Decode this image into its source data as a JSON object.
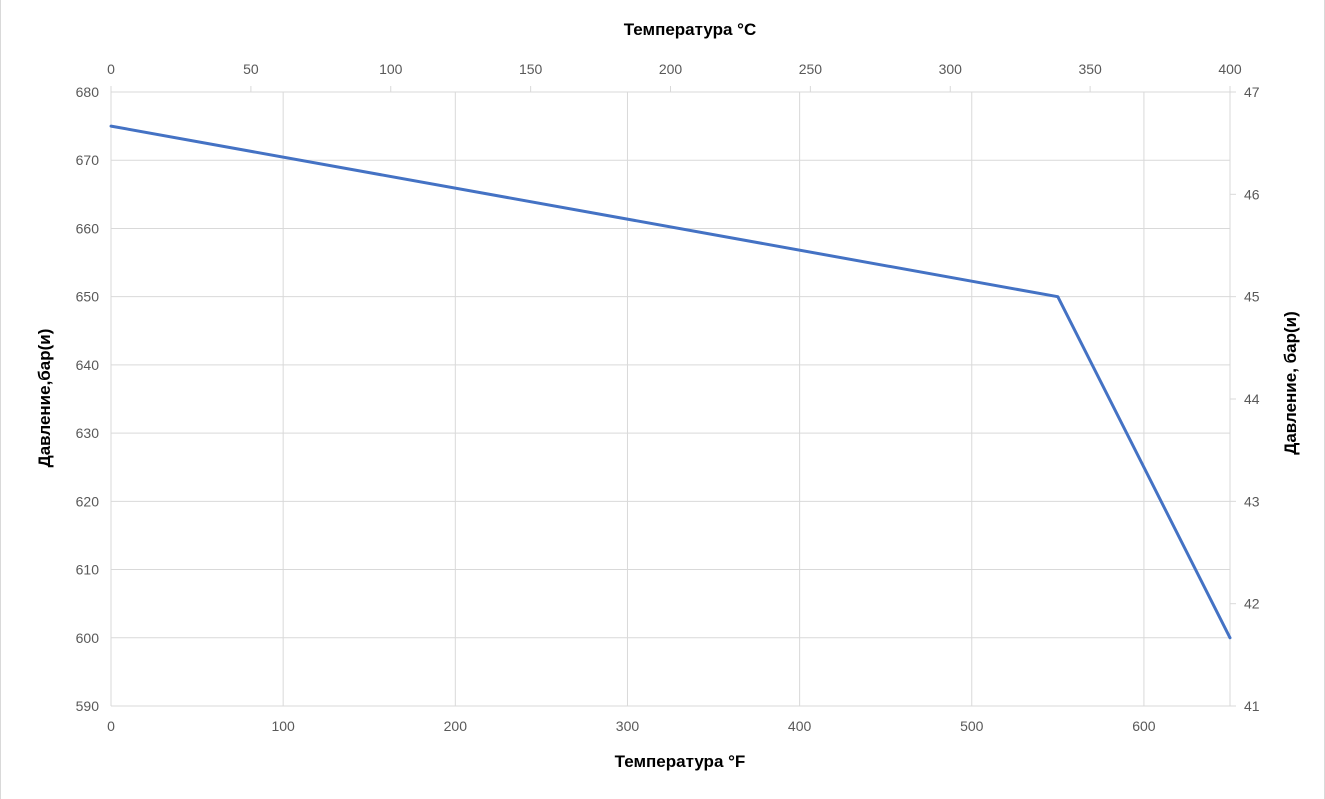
{
  "chart_data": {
    "type": "line",
    "title": "",
    "xlabel": "Температура °F",
    "x2label": "Температура °C",
    "ylabel": "Давление,бар(и)",
    "y2label": "Давление, бар(и)",
    "xlim": [
      0,
      650
    ],
    "x2lim": [
      0,
      400
    ],
    "ylim": [
      590,
      680
    ],
    "y2lim": [
      41,
      47
    ],
    "x_ticks": [
      "0",
      "100",
      "200",
      "300",
      "400",
      "500",
      "600"
    ],
    "x2_ticks": [
      "0",
      "50",
      "100",
      "150",
      "200",
      "250",
      "300",
      "350",
      "400"
    ],
    "y_ticks": [
      "590",
      "600",
      "610",
      "620",
      "630",
      "640",
      "650",
      "660",
      "670",
      "680"
    ],
    "y2_ticks": [
      "41",
      "42",
      "43",
      "44",
      "45",
      "46",
      "47"
    ],
    "grid": true,
    "series": [
      {
        "x": [
          0,
          550,
          650
        ],
        "y": [
          675,
          650,
          600
        ],
        "color": "#4472C4"
      }
    ]
  }
}
